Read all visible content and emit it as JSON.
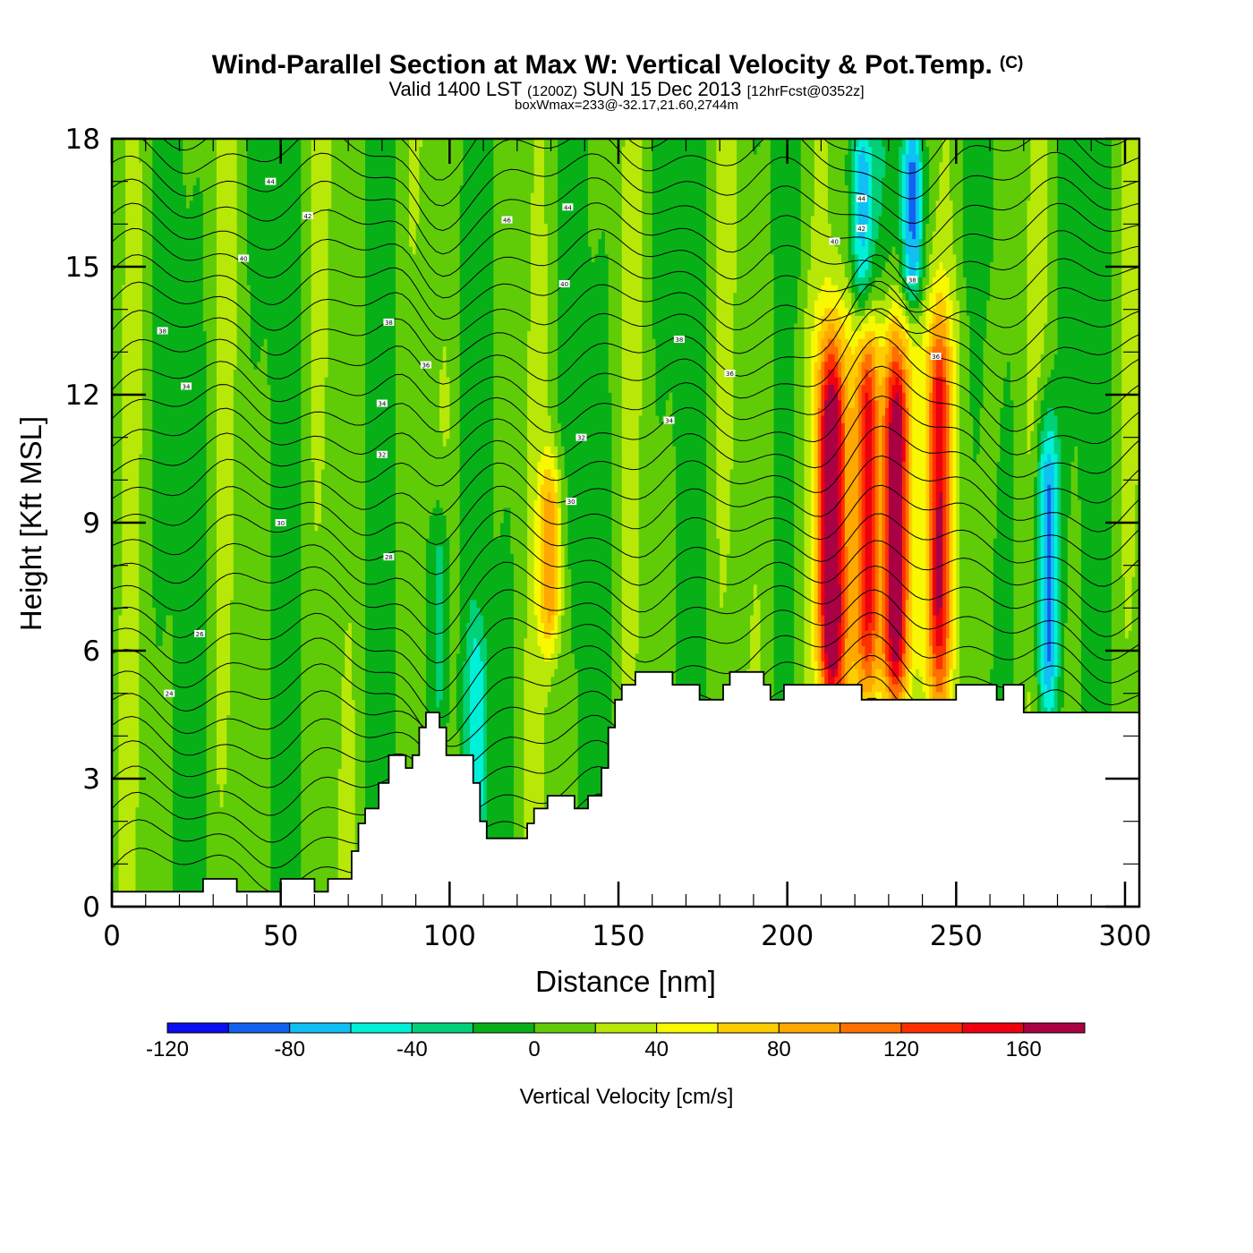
{
  "chart_data": {
    "type": "heatmap",
    "title": "Wind-Parallel Section at Max W: Vertical Velocity & Pot.Temp.",
    "title_mark": "(C)",
    "subtitle_parts": [
      "Valid 1400 LST",
      "(1200Z)",
      "SUN 15 Dec 2013",
      "[12hrFcst@0352z]"
    ],
    "subtitle2": "boxWmax=233@-32.17,21.60,2744m",
    "xlabel": "Distance [nm]",
    "ylabel": "Height [Kft MSL]",
    "xlim": [
      0,
      304
    ],
    "ylim": [
      0,
      18
    ],
    "x_ticks": [
      0,
      50,
      100,
      150,
      200,
      250,
      300
    ],
    "x_tick_labels": [
      "0",
      "50",
      "100",
      "150",
      "200",
      "250",
      "300"
    ],
    "x_minor_step": 10,
    "y_ticks": [
      0,
      3,
      6,
      9,
      12,
      15,
      18
    ],
    "y_tick_labels": [
      "0",
      "3",
      "6",
      "9",
      "12",
      "15",
      "18"
    ],
    "y_minor_step": 1,
    "colorbar": {
      "label": "Vertical Velocity [cm/s]",
      "levels": [
        -120,
        -100,
        -80,
        -60,
        -40,
        -20,
        0,
        20,
        40,
        60,
        80,
        100,
        120,
        140,
        160,
        180
      ],
      "tick_values": [
        -120,
        -80,
        -40,
        0,
        40,
        80,
        120,
        160
      ],
      "tick_labels": [
        "-120",
        "-80",
        "-40",
        "0",
        "40",
        "80",
        "120",
        "160"
      ],
      "colors": [
        "#0a0ef0",
        "#1262f0",
        "#10c0f5",
        "#00f0d8",
        "#00d078",
        "#08b018",
        "#60cc08",
        "#b8e808",
        "#f8f800",
        "#ffcc00",
        "#ffa800",
        "#ff7000",
        "#ff3000",
        "#ee0010",
        "#aa0044"
      ]
    },
    "velocity_features": [
      {
        "name": "updraft-core-1",
        "x_nm": 213,
        "y_kft_range": [
          5.2,
          12.5
        ],
        "peak_cm_s": 170
      },
      {
        "name": "updraft-core-2",
        "x_nm": 232,
        "y_kft_range": [
          5.2,
          12.5
        ],
        "peak_cm_s": 150
      },
      {
        "name": "updraft-core-3",
        "x_nm": 224,
        "y_kft_range": [
          5.5,
          13.0
        ],
        "peak_cm_s": 110
      },
      {
        "name": "updraft-core-4",
        "x_nm": 245,
        "y_kft_range": [
          5.5,
          13.0
        ],
        "peak_cm_s": 110
      },
      {
        "name": "updraft-core-5",
        "x_nm": 130,
        "y_kft_range": [
          6.5,
          10.0
        ],
        "peak_cm_s": 80
      },
      {
        "name": "downdraft-core-1",
        "x_nm": 277,
        "y_kft_range": [
          4.8,
          11.0
        ],
        "peak_cm_s": -100
      },
      {
        "name": "downdraft-aloft-1",
        "x_nm": 222,
        "y_kft_range": [
          14.0,
          18.0
        ],
        "peak_cm_s": -80
      },
      {
        "name": "downdraft-aloft-2",
        "x_nm": 237,
        "y_kft_range": [
          14.5,
          18.0
        ],
        "peak_cm_s": -100
      },
      {
        "name": "downdraft-low-1",
        "x_nm": 108,
        "y_kft_range": [
          2.0,
          6.0
        ],
        "peak_cm_s": -50
      },
      {
        "name": "downdraft-low-2",
        "x_nm": 97,
        "y_kft_range": [
          4.0,
          9.0
        ],
        "peak_cm_s": -50
      }
    ],
    "terrain_kft": [
      [
        0,
        0.35
      ],
      [
        27,
        0.35
      ],
      [
        27,
        0.65
      ],
      [
        37,
        0.65
      ],
      [
        37,
        0.35
      ],
      [
        50,
        0.35
      ],
      [
        50,
        0.65
      ],
      [
        60,
        0.65
      ],
      [
        60,
        0.35
      ],
      [
        64,
        0.35
      ],
      [
        64,
        0.65
      ],
      [
        71,
        0.65
      ],
      [
        71,
        1.3
      ],
      [
        73,
        1.3
      ],
      [
        73,
        1.95
      ],
      [
        75,
        1.95
      ],
      [
        75,
        2.3
      ],
      [
        79,
        2.3
      ],
      [
        79,
        2.9
      ],
      [
        82,
        2.9
      ],
      [
        82,
        3.55
      ],
      [
        87,
        3.55
      ],
      [
        87,
        3.25
      ],
      [
        89,
        3.25
      ],
      [
        89,
        3.55
      ],
      [
        91,
        3.55
      ],
      [
        91,
        4.2
      ],
      [
        93,
        4.2
      ],
      [
        93,
        4.55
      ],
      [
        97,
        4.55
      ],
      [
        97,
        4.2
      ],
      [
        99,
        4.2
      ],
      [
        99,
        3.55
      ],
      [
        107,
        3.55
      ],
      [
        107,
        2.9
      ],
      [
        109,
        2.9
      ],
      [
        109,
        2.0
      ],
      [
        111,
        2.0
      ],
      [
        111,
        1.6
      ],
      [
        123,
        1.6
      ],
      [
        123,
        1.95
      ],
      [
        125,
        1.95
      ],
      [
        125,
        2.3
      ],
      [
        129,
        2.3
      ],
      [
        129,
        2.6
      ],
      [
        137,
        2.6
      ],
      [
        137,
        2.3
      ],
      [
        141,
        2.3
      ],
      [
        141,
        2.6
      ],
      [
        145,
        2.6
      ],
      [
        145,
        3.25
      ],
      [
        147,
        3.25
      ],
      [
        147,
        4.2
      ],
      [
        149,
        4.2
      ],
      [
        149,
        4.85
      ],
      [
        151,
        4.85
      ],
      [
        151,
        5.2
      ],
      [
        155,
        5.2
      ],
      [
        155,
        5.5
      ],
      [
        166,
        5.5
      ],
      [
        166,
        5.2
      ],
      [
        174,
        5.2
      ],
      [
        174,
        4.85
      ],
      [
        181,
        4.85
      ],
      [
        181,
        5.2
      ],
      [
        183,
        5.2
      ],
      [
        183,
        5.5
      ],
      [
        193,
        5.5
      ],
      [
        193,
        5.2
      ],
      [
        195,
        5.2
      ],
      [
        195,
        4.85
      ],
      [
        199,
        4.85
      ],
      [
        199,
        5.2
      ],
      [
        222,
        5.2
      ],
      [
        222,
        4.85
      ],
      [
        250,
        4.85
      ],
      [
        250,
        5.2
      ],
      [
        262,
        5.2
      ],
      [
        262,
        4.85
      ],
      [
        264,
        4.85
      ],
      [
        264,
        5.2
      ],
      [
        270,
        5.2
      ],
      [
        270,
        4.55
      ],
      [
        304,
        4.55
      ]
    ],
    "pot_temp_contours": {
      "units": "deg (theta label)",
      "labels": [
        {
          "x_nm": 47,
          "y_kft": 17.0,
          "text": "44"
        },
        {
          "x_nm": 58,
          "y_kft": 16.2,
          "text": "42"
        },
        {
          "x_nm": 39,
          "y_kft": 15.2,
          "text": "40"
        },
        {
          "x_nm": 15,
          "y_kft": 13.5,
          "text": "38"
        },
        {
          "x_nm": 22,
          "y_kft": 12.2,
          "text": "34"
        },
        {
          "x_nm": 82,
          "y_kft": 13.7,
          "text": "38"
        },
        {
          "x_nm": 93,
          "y_kft": 12.7,
          "text": "36"
        },
        {
          "x_nm": 80,
          "y_kft": 11.8,
          "text": "34"
        },
        {
          "x_nm": 80,
          "y_kft": 10.6,
          "text": "32"
        },
        {
          "x_nm": 50,
          "y_kft": 9.0,
          "text": "30"
        },
        {
          "x_nm": 82,
          "y_kft": 8.2,
          "text": "28"
        },
        {
          "x_nm": 26,
          "y_kft": 6.4,
          "text": "26"
        },
        {
          "x_nm": 17,
          "y_kft": 5.0,
          "text": "24"
        },
        {
          "x_nm": 117,
          "y_kft": 16.1,
          "text": "46"
        },
        {
          "x_nm": 135,
          "y_kft": 16.4,
          "text": "44"
        },
        {
          "x_nm": 134,
          "y_kft": 14.6,
          "text": "40"
        },
        {
          "x_nm": 168,
          "y_kft": 13.3,
          "text": "38"
        },
        {
          "x_nm": 183,
          "y_kft": 12.5,
          "text": "36"
        },
        {
          "x_nm": 165,
          "y_kft": 11.4,
          "text": "34"
        },
        {
          "x_nm": 139,
          "y_kft": 11.0,
          "text": "32"
        },
        {
          "x_nm": 136,
          "y_kft": 9.5,
          "text": "30"
        },
        {
          "x_nm": 222,
          "y_kft": 16.6,
          "text": "44"
        },
        {
          "x_nm": 222,
          "y_kft": 15.9,
          "text": "42"
        },
        {
          "x_nm": 214,
          "y_kft": 15.6,
          "text": "40"
        },
        {
          "x_nm": 237,
          "y_kft": 14.7,
          "text": "38"
        },
        {
          "x_nm": 244,
          "y_kft": 12.9,
          "text": "36"
        }
      ]
    }
  }
}
